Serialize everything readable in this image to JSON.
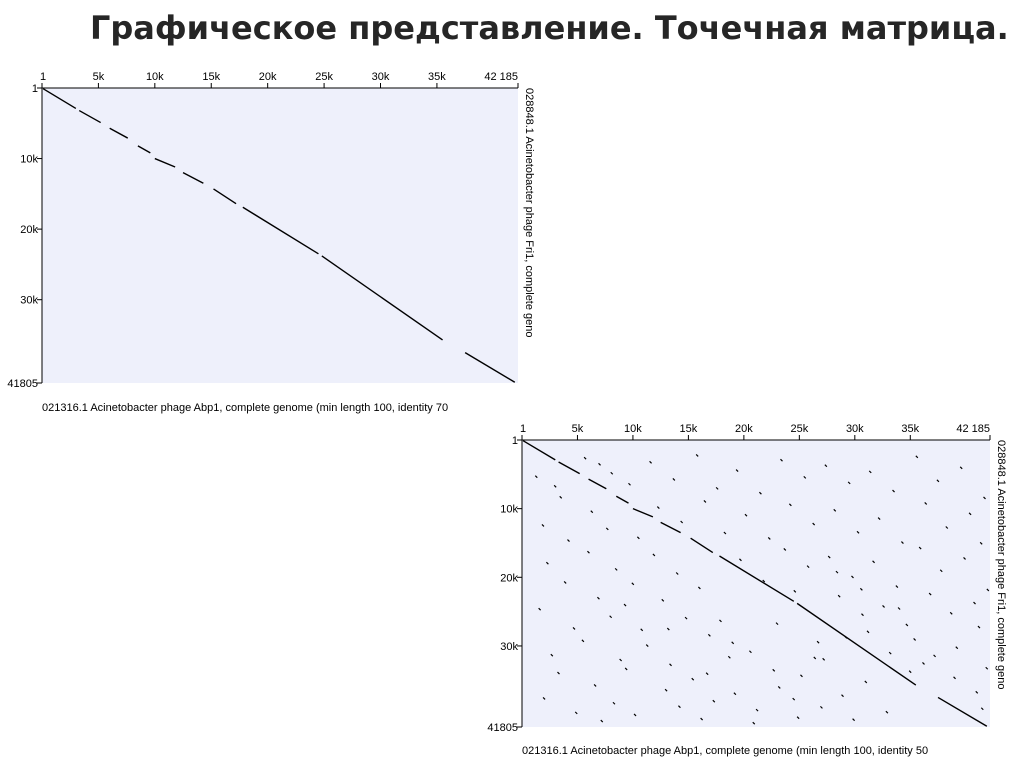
{
  "title": "Графическое представление. Точечная матрица.",
  "chart_data": [
    {
      "type": "scatter",
      "x_axis_label": "021316.1 Acinetobacter phage Abp1, complete genome (min length 100, identity 70",
      "y_axis_label": "028848.1 Acinetobacter phage Fri1, complete geno",
      "x_tick_labels": [
        "1",
        "5k",
        "10k",
        "15k",
        "20k",
        "25k",
        "30k",
        "35k",
        "42 185"
      ],
      "x_ticks": [
        1,
        5000,
        10000,
        15000,
        20000,
        25000,
        30000,
        35000,
        42185
      ],
      "y_tick_labels": [
        "1",
        "10k",
        "20k",
        "30k",
        "41805"
      ],
      "y_ticks": [
        1,
        10000,
        20000,
        30000,
        41805
      ],
      "xlim": [
        1,
        42185
      ],
      "ylim": [
        1,
        41805
      ],
      "colors": {
        "background": "#eef0fb",
        "points": "#000000",
        "axis": "#000000"
      },
      "segments": [
        {
          "x1": 100,
          "y1": 100,
          "x2": 3000,
          "y2": 2900
        },
        {
          "x1": 3300,
          "y1": 3200,
          "x2": 5200,
          "y2": 4900
        },
        {
          "x1": 6000,
          "y1": 5700,
          "x2": 7600,
          "y2": 7100
        },
        {
          "x1": 8500,
          "y1": 8200,
          "x2": 9600,
          "y2": 9200
        },
        {
          "x1": 10000,
          "y1": 10000,
          "x2": 11800,
          "y2": 11200
        },
        {
          "x1": 12500,
          "y1": 12000,
          "x2": 14300,
          "y2": 13500
        },
        {
          "x1": 15200,
          "y1": 14300,
          "x2": 17200,
          "y2": 16400
        },
        {
          "x1": 17800,
          "y1": 16900,
          "x2": 24500,
          "y2": 23500
        },
        {
          "x1": 24800,
          "y1": 23800,
          "x2": 35500,
          "y2": 35700
        },
        {
          "x1": 37500,
          "y1": 37500,
          "x2": 41900,
          "y2": 41700
        }
      ],
      "points": []
    },
    {
      "type": "scatter",
      "x_axis_label": "021316.1 Acinetobacter phage Abp1, complete genome (min length 100, identity 50",
      "y_axis_label": "028848.1 Acinetobacter phage Fri1, complete geno",
      "x_tick_labels": [
        "1",
        "5k",
        "10k",
        "15k",
        "20k",
        "25k",
        "30k",
        "35k",
        "42 185"
      ],
      "x_ticks": [
        1,
        5000,
        10000,
        15000,
        20000,
        25000,
        30000,
        35000,
        42185
      ],
      "y_tick_labels": [
        "1",
        "10k",
        "20k",
        "30k",
        "41805"
      ],
      "y_ticks": [
        1,
        10000,
        20000,
        30000,
        41805
      ],
      "xlim": [
        1,
        42185
      ],
      "ylim": [
        1,
        41805
      ],
      "colors": {
        "background": "#eef0fb",
        "points": "#000000",
        "axis": "#000000"
      },
      "segments": [
        {
          "x1": 100,
          "y1": 100,
          "x2": 3000,
          "y2": 2900
        },
        {
          "x1": 3300,
          "y1": 3200,
          "x2": 5200,
          "y2": 4900
        },
        {
          "x1": 6000,
          "y1": 5700,
          "x2": 7600,
          "y2": 7100
        },
        {
          "x1": 8500,
          "y1": 8200,
          "x2": 9600,
          "y2": 9200
        },
        {
          "x1": 10000,
          "y1": 10000,
          "x2": 11800,
          "y2": 11200
        },
        {
          "x1": 12500,
          "y1": 12000,
          "x2": 14300,
          "y2": 13500
        },
        {
          "x1": 15200,
          "y1": 14300,
          "x2": 17200,
          "y2": 16400
        },
        {
          "x1": 17800,
          "y1": 16900,
          "x2": 24500,
          "y2": 23500
        },
        {
          "x1": 24800,
          "y1": 23800,
          "x2": 35500,
          "y2": 35700
        },
        {
          "x1": 37500,
          "y1": 37500,
          "x2": 41900,
          "y2": 41700
        }
      ],
      "points": [
        [
          1200,
          5200
        ],
        [
          1800,
          12300
        ],
        [
          2200,
          17800
        ],
        [
          1500,
          24500
        ],
        [
          2600,
          31200
        ],
        [
          1900,
          37500
        ],
        [
          3400,
          8200
        ],
        [
          4100,
          14500
        ],
        [
          3800,
          20600
        ],
        [
          4600,
          27300
        ],
        [
          3200,
          33800
        ],
        [
          4800,
          39600
        ],
        [
          5600,
          2500
        ],
        [
          6200,
          10300
        ],
        [
          5900,
          16200
        ],
        [
          6800,
          22900
        ],
        [
          5400,
          29100
        ],
        [
          6500,
          35600
        ],
        [
          7100,
          40800
        ],
        [
          8000,
          4700
        ],
        [
          7600,
          12800
        ],
        [
          8400,
          18700
        ],
        [
          7900,
          25600
        ],
        [
          8800,
          31900
        ],
        [
          8200,
          38200
        ],
        [
          9600,
          6300
        ],
        [
          10400,
          14100
        ],
        [
          9900,
          20800
        ],
        [
          10700,
          27500
        ],
        [
          9300,
          33200
        ],
        [
          10100,
          39900
        ],
        [
          11500,
          3100
        ],
        [
          12200,
          9700
        ],
        [
          11800,
          16600
        ],
        [
          12600,
          23200
        ],
        [
          11200,
          29800
        ],
        [
          12900,
          36300
        ],
        [
          13600,
          5600
        ],
        [
          14300,
          11800
        ],
        [
          13900,
          19300
        ],
        [
          14700,
          25800
        ],
        [
          13300,
          32600
        ],
        [
          14100,
          38700
        ],
        [
          15700,
          2100
        ],
        [
          16400,
          8800
        ],
        [
          15900,
          21400
        ],
        [
          16800,
          28300
        ],
        [
          15300,
          34700
        ],
        [
          16100,
          40500
        ],
        [
          17500,
          6900
        ],
        [
          18200,
          13400
        ],
        [
          17800,
          26200
        ],
        [
          18600,
          31500
        ],
        [
          17200,
          37900
        ],
        [
          19300,
          4300
        ],
        [
          20100,
          10800
        ],
        [
          19600,
          17300
        ],
        [
          20500,
          30700
        ],
        [
          19100,
          36800
        ],
        [
          20800,
          41100
        ],
        [
          21400,
          7600
        ],
        [
          22200,
          14200
        ],
        [
          21700,
          20400
        ],
        [
          22600,
          33400
        ],
        [
          21100,
          39200
        ],
        [
          23300,
          2800
        ],
        [
          24100,
          9300
        ],
        [
          23600,
          15800
        ],
        [
          24500,
          21900
        ],
        [
          23100,
          35900
        ],
        [
          24800,
          40300
        ],
        [
          25400,
          5300
        ],
        [
          26200,
          12100
        ],
        [
          25700,
          18300
        ],
        [
          26600,
          29300
        ],
        [
          25100,
          34200
        ],
        [
          26900,
          38800
        ],
        [
          27300,
          3600
        ],
        [
          28100,
          10100
        ],
        [
          27600,
          16900
        ],
        [
          28500,
          22600
        ],
        [
          27100,
          31800
        ],
        [
          28800,
          37100
        ],
        [
          29400,
          6100
        ],
        [
          30200,
          13300
        ],
        [
          29700,
          19800
        ],
        [
          30600,
          25300
        ],
        [
          29100,
          28600
        ],
        [
          30900,
          35100
        ],
        [
          29800,
          40600
        ],
        [
          31300,
          4500
        ],
        [
          32100,
          11300
        ],
        [
          31600,
          17600
        ],
        [
          32500,
          24100
        ],
        [
          31100,
          27800
        ],
        [
          32800,
          39500
        ],
        [
          33400,
          7300
        ],
        [
          34200,
          14800
        ],
        [
          33700,
          21200
        ],
        [
          34600,
          26800
        ],
        [
          33100,
          30900
        ],
        [
          34900,
          33600
        ],
        [
          35500,
          2300
        ],
        [
          36300,
          9100
        ],
        [
          35800,
          15600
        ],
        [
          36700,
          22300
        ],
        [
          35300,
          28900
        ],
        [
          36100,
          32400
        ],
        [
          37400,
          5800
        ],
        [
          38200,
          12600
        ],
        [
          37700,
          18900
        ],
        [
          38600,
          25100
        ],
        [
          37100,
          31300
        ],
        [
          38900,
          34500
        ],
        [
          39500,
          3900
        ],
        [
          40300,
          10600
        ],
        [
          39800,
          17100
        ],
        [
          40700,
          23600
        ],
        [
          39100,
          30100
        ],
        [
          40900,
          36600
        ],
        [
          41600,
          8300
        ],
        [
          41300,
          14900
        ],
        [
          41900,
          21700
        ],
        [
          41100,
          27100
        ],
        [
          41800,
          33100
        ],
        [
          41400,
          39000
        ],
        [
          2900,
          6600
        ],
        [
          6900,
          3400
        ],
        [
          13100,
          27400
        ],
        [
          18900,
          29400
        ],
        [
          22900,
          26600
        ],
        [
          26300,
          31600
        ],
        [
          28300,
          19100
        ],
        [
          30500,
          21600
        ],
        [
          33900,
          24400
        ],
        [
          24400,
          37600
        ],
        [
          16600,
          33900
        ],
        [
          9200,
          23900
        ]
      ]
    }
  ]
}
